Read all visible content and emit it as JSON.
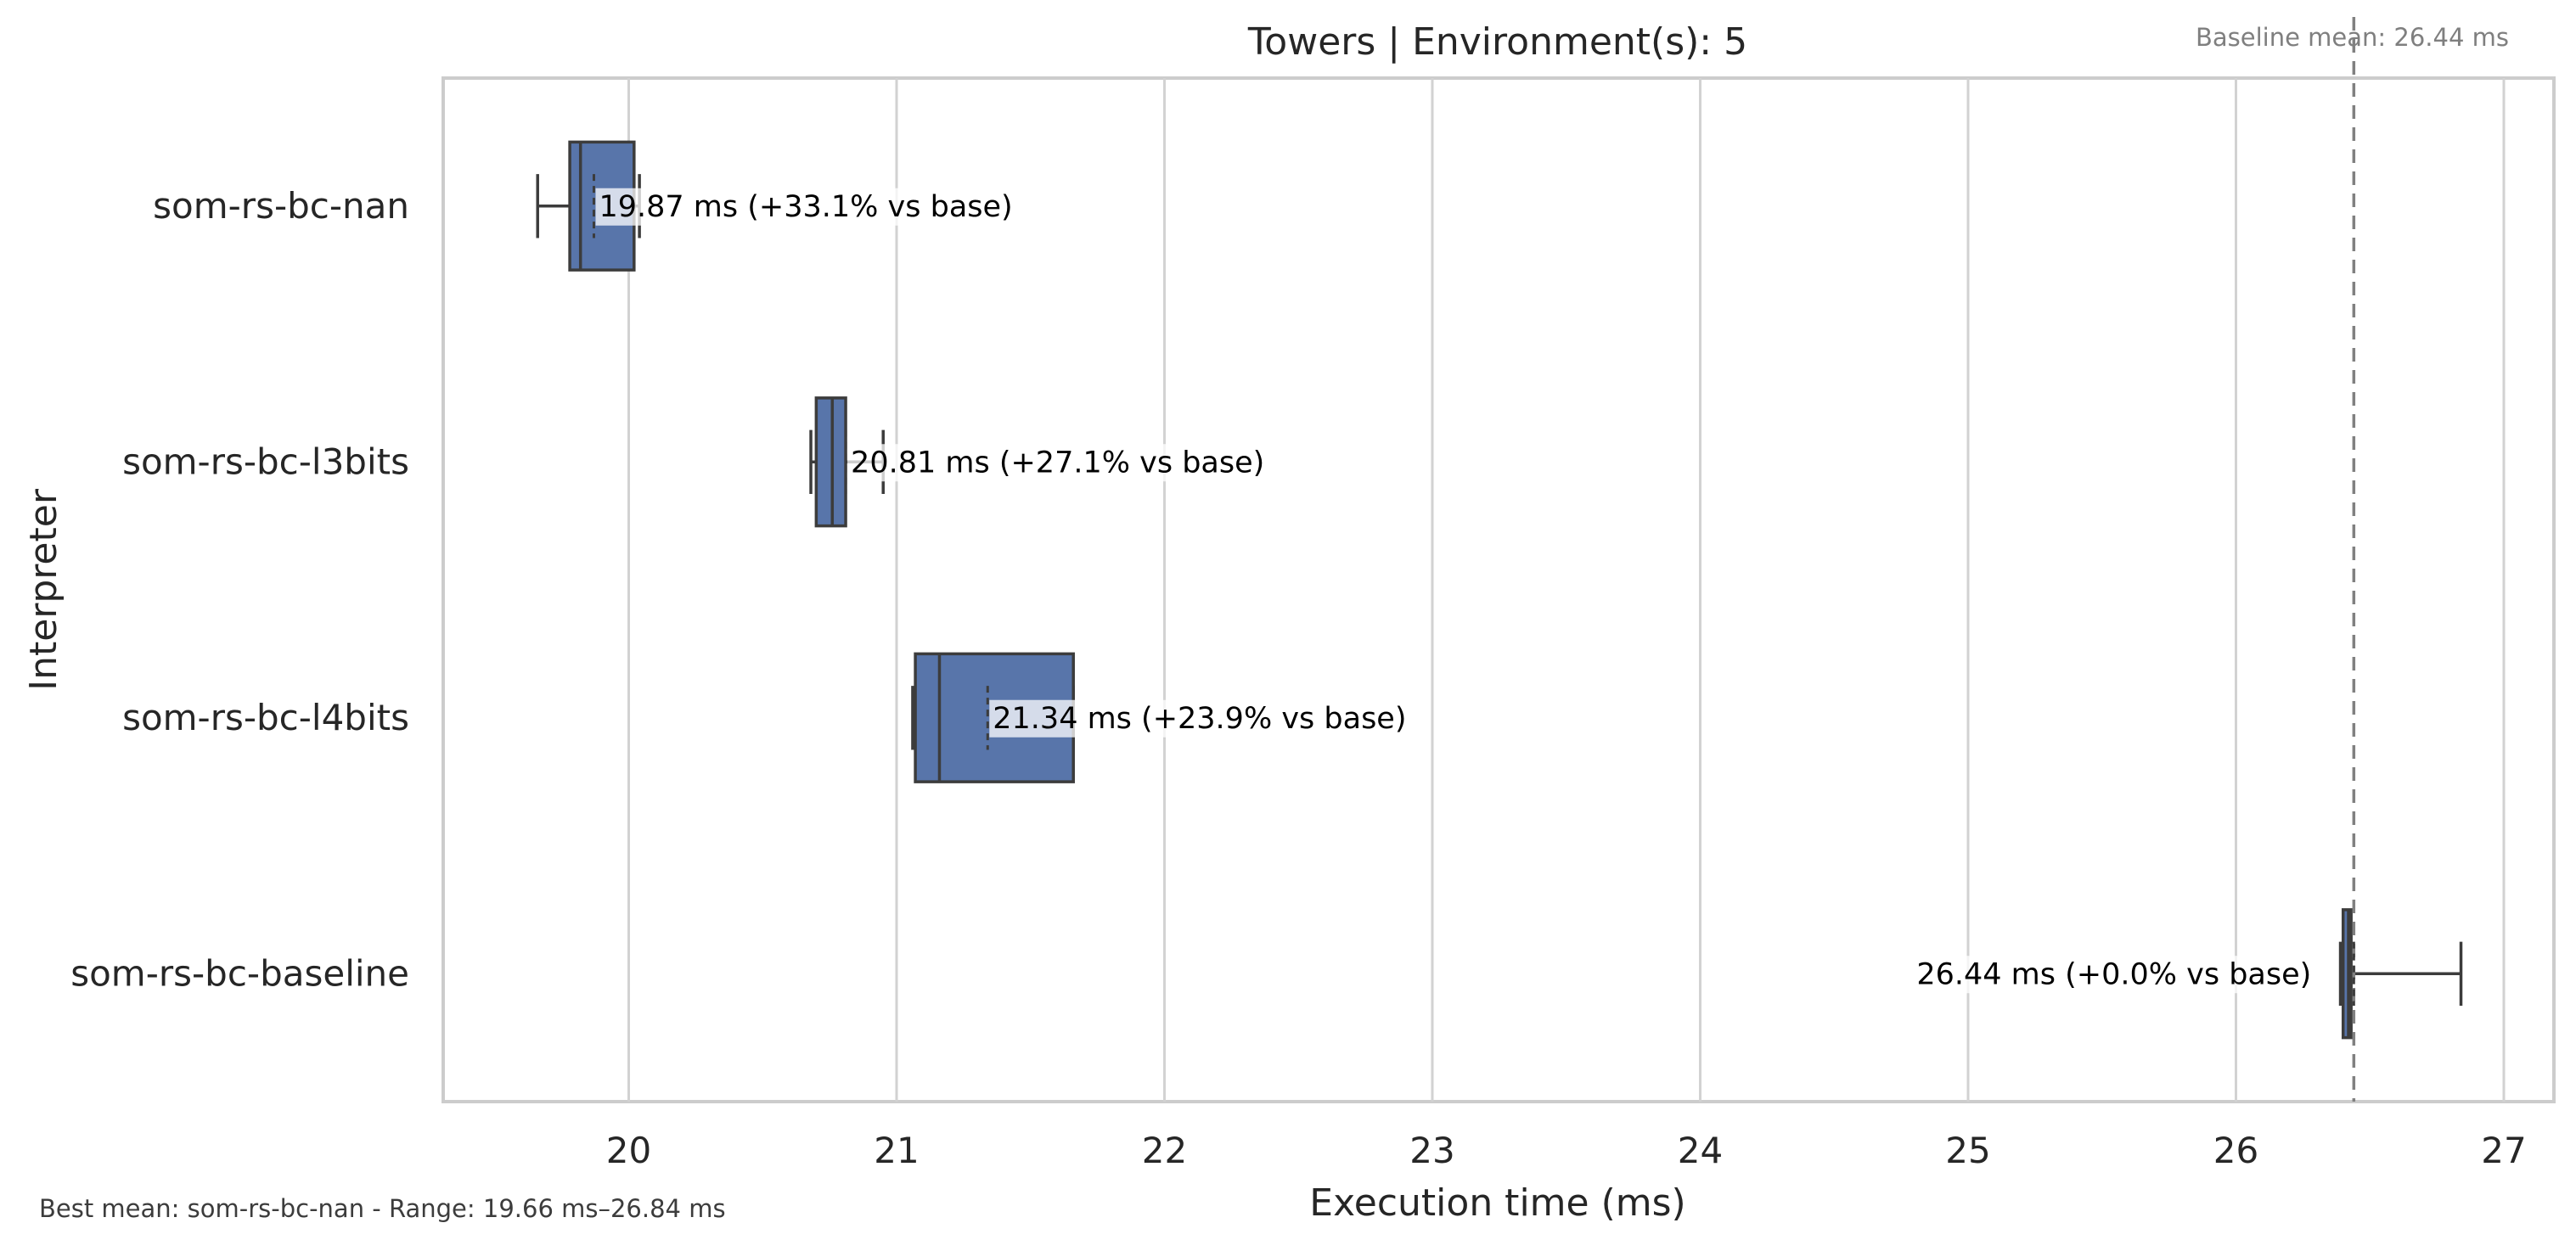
{
  "chart_data": {
    "type": "box",
    "orientation": "horizontal",
    "title": "Towers | Environment(s): 5",
    "xlabel": "Execution time (ms)",
    "ylabel": "Interpreter",
    "xlim": [
      19.3,
      27.2
    ],
    "xticks": [
      20,
      21,
      22,
      23,
      24,
      25,
      26,
      27
    ],
    "grid": "vertical",
    "baseline": {
      "label": "Baseline mean: 26.44 ms",
      "value": 26.44
    },
    "footer": "Best mean: som-rs-bc-nan - Range: 19.66 ms–26.84 ms",
    "colors": {
      "box": "#5875aa",
      "edge": "#3c3c3c",
      "grid": "#d2d2d2",
      "baseline": "#808080"
    },
    "series": [
      {
        "category": "som-rs-bc-nan",
        "whisker_low": 19.66,
        "q1": 19.78,
        "median": 19.82,
        "q3": 20.02,
        "whisker_high": 20.04,
        "mean": 19.87,
        "annotation": "19.87 ms  (+33.1% vs base)"
      },
      {
        "category": "som-rs-bc-l3bits",
        "whisker_low": 20.68,
        "q1": 20.7,
        "median": 20.76,
        "q3": 20.81,
        "whisker_high": 20.95,
        "mean": 20.81,
        "annotation": "20.81 ms  (+27.1% vs base)"
      },
      {
        "category": "som-rs-bc-l4bits",
        "whisker_low": 21.06,
        "q1": 21.07,
        "median": 21.16,
        "q3": 21.66,
        "whisker_high": 21.66,
        "mean": 21.34,
        "annotation": "21.34 ms  (+23.9% vs base)"
      },
      {
        "category": "som-rs-bc-baseline",
        "whisker_low": 26.39,
        "q1": 26.4,
        "median": 26.42,
        "q3": 26.43,
        "whisker_high": 26.84,
        "mean": 26.44,
        "annotation": "26.44 ms  (+0.0% vs base)"
      }
    ]
  }
}
